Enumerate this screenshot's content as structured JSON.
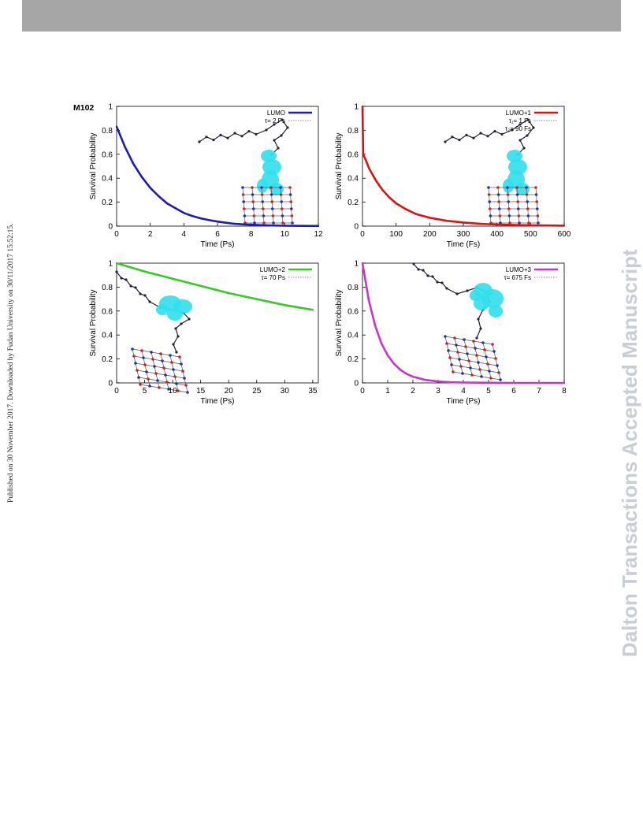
{
  "page": {
    "side_note": "Published on 30 November 2017. Downloaded by Fudan University on 30/11/2017 15:52:15.",
    "watermark": "Dalton Transactions Accepted Manuscript",
    "figure_label": "M102"
  },
  "chart_data": [
    {
      "type": "line",
      "ylabel": "Survival Probability",
      "xlabel": "Time (Ps)",
      "xlim": [
        0,
        12
      ],
      "ylim": [
        0,
        1
      ],
      "xticks": [
        "0",
        "2",
        "4",
        "6",
        "8",
        "10",
        "12"
      ],
      "yticks": [
        "0",
        "0.2",
        "0.4",
        "0.6",
        "0.8",
        "1"
      ],
      "color": "#1c1cb4",
      "legend": [
        {
          "label": "LUMO",
          "style": "solid",
          "color": "#1c1cb4"
        },
        {
          "label": "τ= 2 Ps",
          "style": "dotted",
          "color": "#888888"
        }
      ],
      "series": [
        {
          "name": "LUMO",
          "x": [
            0,
            0.5,
            1,
            1.5,
            2,
            2.5,
            3,
            3.5,
            4,
            4.5,
            5,
            5.5,
            6,
            6.5,
            7,
            7.5,
            8,
            9,
            10,
            11,
            12
          ],
          "y": [
            0.83,
            0.66,
            0.52,
            0.41,
            0.32,
            0.25,
            0.19,
            0.15,
            0.11,
            0.085,
            0.065,
            0.05,
            0.038,
            0.028,
            0.02,
            0.015,
            0.011,
            0.006,
            0.003,
            0.002,
            0.001
          ]
        }
      ],
      "inset": "molecular structure with cyan orbital density"
    },
    {
      "type": "line",
      "ylabel": "Survival Probability",
      "xlabel": "Time (Fs)",
      "xlim": [
        0,
        600
      ],
      "ylim": [
        0,
        1
      ],
      "xticks": [
        "0",
        "100",
        "200",
        "300",
        "400",
        "500",
        "600"
      ],
      "yticks": [
        "0",
        "0.2",
        "0.4",
        "0.6",
        "0.8",
        "1"
      ],
      "color": "#dd1111",
      "legend": [
        {
          "label": "LUMO+1",
          "style": "solid",
          "color": "#dd1111"
        },
        {
          "label": "τ₁= 1 Fs",
          "style": "dotted",
          "color": "#888888"
        },
        {
          "label": "τ₂= 90 Fs",
          "style": "none",
          "color": "#888888"
        }
      ],
      "series": [
        {
          "name": "LUMO+1",
          "x": [
            0,
            2,
            10,
            20,
            40,
            60,
            80,
            100,
            130,
            160,
            200,
            250,
            300,
            350,
            400,
            450,
            500,
            550,
            600
          ],
          "y": [
            1.0,
            0.6,
            0.55,
            0.48,
            0.38,
            0.3,
            0.24,
            0.19,
            0.14,
            0.1,
            0.07,
            0.045,
            0.03,
            0.02,
            0.013,
            0.01,
            0.007,
            0.005,
            0.004
          ]
        }
      ],
      "inset": "molecular structure with cyan orbital density"
    },
    {
      "type": "line",
      "ylabel": "Survival Probability",
      "xlabel": "Time (Ps)",
      "xlim": [
        0,
        36
      ],
      "ylim": [
        0,
        1
      ],
      "xticks": [
        "0",
        "5",
        "10",
        "15",
        "20",
        "25",
        "30",
        "35"
      ],
      "yticks": [
        "0",
        "0.2",
        "0.4",
        "0.6",
        "0.8",
        "1"
      ],
      "color": "#33cc22",
      "legend": [
        {
          "label": "LUMO+2",
          "style": "solid",
          "color": "#33cc22"
        },
        {
          "label": "τ= 70 Ps",
          "style": "dotted",
          "color": "#888888"
        }
      ],
      "series": [
        {
          "name": "LUMO+2",
          "x": [
            0,
            5,
            10,
            15,
            20,
            25,
            30,
            35
          ],
          "y": [
            1.0,
            0.93,
            0.87,
            0.81,
            0.75,
            0.7,
            0.65,
            0.61
          ]
        }
      ],
      "inset": "molecular structure with cyan orbital density"
    },
    {
      "type": "line",
      "ylabel": "Survival Probability",
      "xlabel": "Time (Ps)",
      "xlim": [
        0,
        8
      ],
      "ylim": [
        0,
        1
      ],
      "xticks": [
        "0",
        "1",
        "2",
        "3",
        "4",
        "5",
        "6",
        "7",
        "8"
      ],
      "yticks": [
        "0",
        "0.2",
        "0.4",
        "0.6",
        "0.8",
        "1"
      ],
      "color": "#cc33cc",
      "legend": [
        {
          "label": "LUMO+3",
          "style": "solid",
          "color": "#cc33cc"
        },
        {
          "label": "τ= 675 Fs",
          "style": "dotted",
          "color": "#888888"
        }
      ],
      "series": [
        {
          "name": "LUMO+3",
          "x": [
            0,
            0.25,
            0.5,
            0.75,
            1,
            1.25,
            1.5,
            1.75,
            2,
            2.5,
            3,
            3.5,
            4,
            5,
            6,
            7,
            8
          ],
          "y": [
            1.0,
            0.69,
            0.48,
            0.33,
            0.23,
            0.16,
            0.11,
            0.075,
            0.052,
            0.025,
            0.012,
            0.006,
            0.003,
            0.001,
            0.0,
            0.0,
            0.0
          ]
        }
      ],
      "inset": "molecular structure with cyan orbital density"
    }
  ]
}
